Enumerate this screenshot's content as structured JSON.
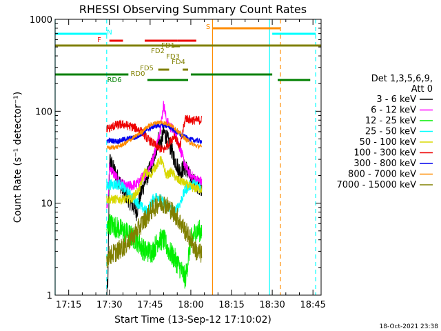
{
  "chart_data": {
    "type": "line",
    "title": "RHESSI Observing Summary Count Rates",
    "xlabel": "Start Time (13-Sep-12 17:10:02)",
    "ylabel": "Count Rate (s⁻¹ detector⁻¹)",
    "y_scale": "log",
    "ylim": [
      1,
      1000
    ],
    "xlim": [
      "17:10",
      "18:48"
    ],
    "x_ticks": [
      "17:15",
      "17:30",
      "17:45",
      "18:00",
      "18:15",
      "18:30",
      "18:45"
    ],
    "y_ticks": [
      "1",
      "10",
      "100",
      "1000"
    ],
    "timestamp": "18-Oct-2021 23:38",
    "legend": {
      "placement": "right",
      "header": [
        "Det 1,3,5,6,9,",
        "Att 0"
      ],
      "entries": [
        {
          "label": "3 - 6 keV",
          "color": "#000000"
        },
        {
          "label": "6 - 12 keV",
          "color": "#ff00ff"
        },
        {
          "label": "12 - 25 keV",
          "color": "#00ee00"
        },
        {
          "label": "25 - 50 keV",
          "color": "#00ffff"
        },
        {
          "label": "50 - 100 keV",
          "color": "#d8d800"
        },
        {
          "label": "100 - 300 keV",
          "color": "#ee0000"
        },
        {
          "label": "300 - 800 keV",
          "color": "#0000ee"
        },
        {
          "label": "800 - 7000 keV",
          "color": "#ff8c00"
        },
        {
          "label": "7000 - 15000 keV",
          "color": "#808000"
        }
      ]
    },
    "series": [
      {
        "name": "3 - 6 keV",
        "color": "#000000",
        "noise": 0.2,
        "points": [
          [
            "17:29",
            1
          ],
          [
            "17:29.5",
            1.5
          ],
          [
            "17:30",
            30
          ],
          [
            "17:32",
            22
          ],
          [
            "17:35",
            14
          ],
          [
            "17:38",
            10
          ],
          [
            "17:40",
            8
          ],
          [
            "17:42",
            14
          ],
          [
            "17:44",
            20
          ],
          [
            "17:46",
            28
          ],
          [
            "17:47",
            35
          ],
          [
            "17:48",
            50
          ],
          [
            "17:49",
            45
          ],
          [
            "17:50",
            60
          ],
          [
            "17:52",
            45
          ],
          [
            "17:54",
            30
          ],
          [
            "17:56",
            22
          ],
          [
            "17:58",
            25
          ],
          [
            "18:00",
            18
          ],
          [
            "18:02",
            16
          ],
          [
            "18:04",
            15
          ]
        ]
      },
      {
        "name": "6 - 12 keV",
        "color": "#ff00ff",
        "noise": 0.12,
        "points": [
          [
            "17:29",
            10
          ],
          [
            "17:29.5",
            10
          ],
          [
            "17:30",
            25
          ],
          [
            "17:33",
            18
          ],
          [
            "17:36",
            15
          ],
          [
            "17:40",
            16
          ],
          [
            "17:44",
            22
          ],
          [
            "17:46",
            30
          ],
          [
            "17:48",
            50
          ],
          [
            "17:49",
            70
          ],
          [
            "17:50",
            120
          ],
          [
            "17:51",
            80
          ],
          [
            "17:52",
            70
          ],
          [
            "17:54",
            60
          ],
          [
            "17:56",
            40
          ],
          [
            "17:58",
            25
          ],
          [
            "18:00",
            20
          ],
          [
            "18:02",
            18
          ],
          [
            "18:04",
            17
          ]
        ]
      },
      {
        "name": "12 - 25 keV",
        "color": "#00ee00",
        "noise": 0.25,
        "points": [
          [
            "17:29",
            5
          ],
          [
            "17:30",
            6
          ],
          [
            "17:35",
            5
          ],
          [
            "17:40",
            4
          ],
          [
            "17:43",
            3
          ],
          [
            "17:46",
            3
          ],
          [
            "17:48",
            4
          ],
          [
            "17:50",
            4
          ],
          [
            "17:52",
            3
          ],
          [
            "17:54",
            2.5
          ],
          [
            "17:56",
            2
          ],
          [
            "17:58",
            1.5
          ],
          [
            "18:00",
            4
          ],
          [
            "18:02",
            5
          ],
          [
            "18:04",
            5
          ]
        ]
      },
      {
        "name": "25 - 50 keV",
        "color": "#00ffff",
        "noise": 0.12,
        "points": [
          [
            "17:29",
            15
          ],
          [
            "17:30",
            16
          ],
          [
            "17:34",
            16
          ],
          [
            "17:38",
            12
          ],
          [
            "17:42",
            9
          ],
          [
            "17:44",
            8
          ],
          [
            "17:46",
            11
          ],
          [
            "17:48",
            12
          ],
          [
            "17:50",
            10
          ],
          [
            "17:52",
            9
          ],
          [
            "17:54",
            8
          ],
          [
            "17:56",
            10
          ],
          [
            "17:58",
            14
          ],
          [
            "18:00",
            16
          ],
          [
            "18:02",
            16
          ],
          [
            "18:04",
            15
          ]
        ]
      },
      {
        "name": "50 - 100 keV",
        "color": "#d8d800",
        "noise": 0.1,
        "points": [
          [
            "17:29",
            11
          ],
          [
            "17:30",
            11
          ],
          [
            "17:34",
            11
          ],
          [
            "17:38",
            11
          ],
          [
            "17:41",
            14
          ],
          [
            "17:43",
            22
          ],
          [
            "17:45",
            20
          ],
          [
            "17:47",
            25
          ],
          [
            "17:49",
            30
          ],
          [
            "17:51",
            20
          ],
          [
            "17:53",
            22
          ],
          [
            "17:55",
            18
          ],
          [
            "17:57",
            17
          ],
          [
            "18:00",
            15
          ],
          [
            "18:04",
            14
          ]
        ]
      },
      {
        "name": "100 - 300 keV",
        "color": "#ee0000",
        "noise": 0.1,
        "points": [
          [
            "17:29",
            65
          ],
          [
            "17:30",
            65
          ],
          [
            "17:32",
            70
          ],
          [
            "17:35",
            72
          ],
          [
            "17:38",
            68
          ],
          [
            "17:40",
            65
          ],
          [
            "17:42",
            60
          ],
          [
            "17:44",
            50
          ],
          [
            "17:46",
            45
          ],
          [
            "17:48",
            40
          ],
          [
            "17:50",
            38
          ],
          [
            "17:52",
            45
          ],
          [
            "17:54",
            55
          ],
          [
            "17:56",
            40
          ],
          [
            "17:58",
            85
          ],
          [
            "18:00",
            80
          ],
          [
            "18:02",
            80
          ],
          [
            "18:04",
            80
          ]
        ]
      },
      {
        "name": "300 - 800 keV",
        "color": "#0000ee",
        "noise": 0.06,
        "points": [
          [
            "17:29",
            48
          ],
          [
            "17:30",
            48
          ],
          [
            "17:33",
            47
          ],
          [
            "17:36",
            50
          ],
          [
            "17:40",
            52
          ],
          [
            "17:42",
            58
          ],
          [
            "17:44",
            63
          ],
          [
            "17:46",
            68
          ],
          [
            "17:48",
            70
          ],
          [
            "17:50",
            71
          ],
          [
            "17:52",
            68
          ],
          [
            "17:54",
            62
          ],
          [
            "17:56",
            56
          ],
          [
            "17:58",
            52
          ],
          [
            "18:00",
            49
          ],
          [
            "18:02",
            48
          ],
          [
            "18:04",
            47
          ]
        ]
      },
      {
        "name": "800 - 7000 keV",
        "color": "#ff8c00",
        "noise": 0.05,
        "points": [
          [
            "17:29",
            40
          ],
          [
            "17:30",
            40
          ],
          [
            "17:33",
            41
          ],
          [
            "17:36",
            45
          ],
          [
            "17:39",
            52
          ],
          [
            "17:42",
            60
          ],
          [
            "17:44",
            68
          ],
          [
            "17:46",
            73
          ],
          [
            "17:48",
            76
          ],
          [
            "17:50",
            75
          ],
          [
            "17:52",
            72
          ],
          [
            "17:54",
            66
          ],
          [
            "17:56",
            58
          ],
          [
            "17:58",
            50
          ],
          [
            "18:00",
            45
          ],
          [
            "18:02",
            42
          ],
          [
            "18:04",
            41
          ]
        ]
      },
      {
        "name": "7000 - 15000 keV",
        "color": "#808000",
        "noise": 0.22,
        "points": [
          [
            "17:29",
            2.5
          ],
          [
            "17:30",
            2.7
          ],
          [
            "17:33",
            3
          ],
          [
            "17:36",
            3.5
          ],
          [
            "17:39",
            4.5
          ],
          [
            "17:42",
            6
          ],
          [
            "17:45",
            8
          ],
          [
            "17:48",
            10
          ],
          [
            "17:50",
            10
          ],
          [
            "17:52",
            9
          ],
          [
            "17:55",
            7
          ],
          [
            "17:58",
            5
          ],
          [
            "18:00",
            4
          ],
          [
            "18:02",
            3
          ],
          [
            "18:04",
            2.8
          ]
        ]
      }
    ],
    "flag_bars": [
      {
        "label": "N",
        "color": "#00ffff",
        "segments": [
          [
            "17:10",
            "17:29"
          ],
          [
            "18:30",
            "18:46"
          ]
        ]
      },
      {
        "label": "S",
        "color": "#ff8c00",
        "segments": [
          [
            "18:08",
            "18:33"
          ]
        ]
      },
      {
        "label": "F",
        "color": "#ee0000",
        "segments": [
          [
            "17:30",
            "17:35"
          ],
          [
            "17:43",
            "17:55"
          ],
          [
            "17:55",
            "18:02"
          ]
        ]
      },
      {
        "label": "FD1",
        "color": "#808000",
        "segments": [
          [
            "17:53",
            "17:56"
          ]
        ]
      },
      {
        "label": "FD2",
        "color": "#808000",
        "segments": []
      },
      {
        "label": "FD3",
        "color": "#808000",
        "segments": []
      },
      {
        "label": "FD4",
        "color": "#808000",
        "segments": []
      },
      {
        "label": "FD5",
        "color": "#808000",
        "segments": [
          [
            "17:48",
            "17:52"
          ],
          [
            "17:57",
            "17:59"
          ]
        ]
      },
      {
        "label": "RD0",
        "color": "#808000",
        "segments": [
          [
            "17:10",
            "18:48"
          ]
        ]
      },
      {
        "label": "RD6",
        "color": "#008000",
        "segments": [
          [
            "17:10",
            "17:37"
          ],
          [
            "17:44",
            "17:59"
          ],
          [
            "18:00",
            "18:30"
          ],
          [
            "18:32",
            "18:44"
          ]
        ]
      }
    ],
    "vertical_markers": [
      {
        "time": "17:10",
        "color": "#00ffff",
        "style": "solid"
      },
      {
        "time": "17:29",
        "color": "#00ffff",
        "style": "dashed"
      },
      {
        "time": "18:08",
        "color": "#ff8c00",
        "style": "solid"
      },
      {
        "time": "18:29",
        "color": "#00ffff",
        "style": "solid"
      },
      {
        "time": "18:33",
        "color": "#ff8c00",
        "style": "dashed"
      },
      {
        "time": "18:46",
        "color": "#00ffff",
        "style": "dashed"
      }
    ]
  }
}
